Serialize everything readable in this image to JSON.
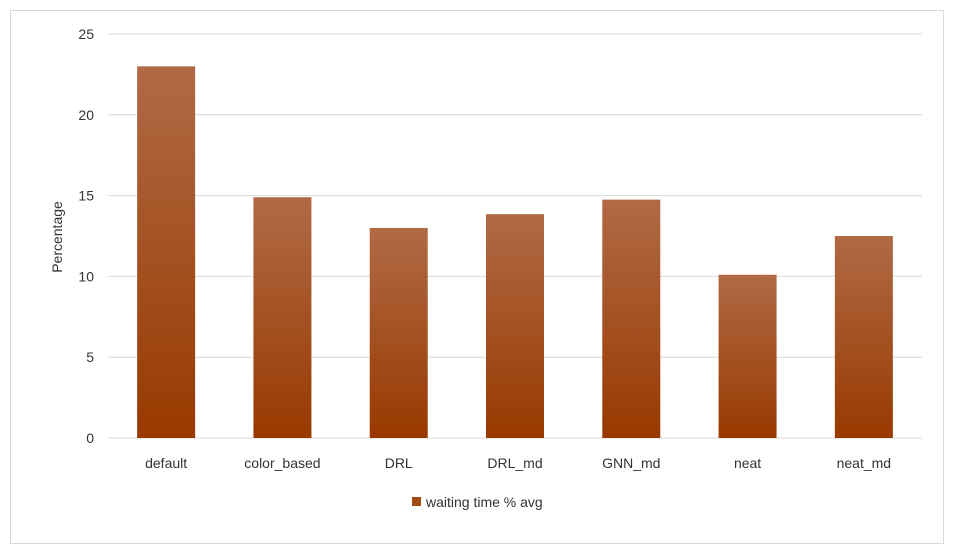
{
  "chart_data": {
    "type": "bar",
    "categories": [
      "default",
      "color_based",
      "DRL",
      "DRL_md",
      "GNN_md",
      "neat",
      "neat_md"
    ],
    "series": [
      {
        "name": "waiting time % avg",
        "values": [
          23.0,
          14.9,
          13.0,
          13.85,
          14.75,
          10.1,
          12.5
        ]
      }
    ],
    "title": "",
    "xlabel": "",
    "ylabel": "Percentage",
    "ylim": [
      0,
      25
    ],
    "yticks": [
      0,
      5,
      10,
      15,
      20,
      25
    ],
    "grid": true,
    "legend_position": "bottom",
    "colors": {
      "bar_top": "#b06a45",
      "bar_bottom": "#983900",
      "grid": "#d9d9d9",
      "legend_swatch": "#a34a12"
    }
  }
}
